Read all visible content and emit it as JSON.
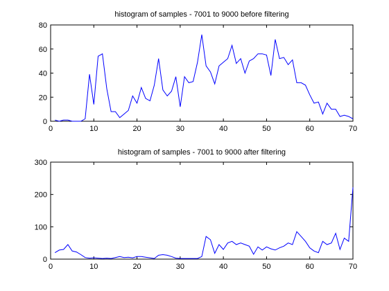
{
  "chart_data": [
    {
      "type": "line",
      "title": "histogram of samples - 7001 to 9000 before filtering",
      "xlabel": "",
      "ylabel": "",
      "xlim": [
        0,
        70
      ],
      "ylim": [
        0,
        80
      ],
      "xticks": [
        0,
        10,
        20,
        30,
        40,
        50,
        60,
        70
      ],
      "yticks": [
        0,
        20,
        40,
        60,
        80
      ],
      "grid": false,
      "color": "#0000ff",
      "series": [
        {
          "x": [
            1,
            2,
            3,
            4,
            5,
            6,
            7,
            8,
            9,
            10,
            11,
            12,
            13,
            14,
            15,
            16,
            17,
            18,
            19,
            20,
            21,
            22,
            23,
            24,
            25,
            26,
            27,
            28,
            29,
            30,
            31,
            32,
            33,
            34,
            35,
            36,
            37,
            38,
            39,
            40,
            41,
            42,
            43,
            44,
            45,
            46,
            47,
            48,
            49,
            50,
            51,
            52,
            53,
            54,
            55,
            56,
            57,
            58,
            59,
            60,
            61,
            62,
            63,
            64,
            65,
            66,
            67,
            68,
            69,
            70
          ],
          "values": [
            1,
            0,
            1,
            1,
            0,
            0,
            0,
            2,
            39,
            14,
            54,
            56,
            27,
            8,
            8,
            3,
            6,
            9,
            21,
            15,
            28,
            19,
            17,
            30,
            52,
            26,
            21,
            25,
            37,
            12,
            37,
            32,
            33,
            49,
            72,
            46,
            41,
            31,
            46,
            49,
            52,
            63,
            48,
            52,
            40,
            50,
            52,
            56,
            56,
            55,
            38,
            68,
            52,
            53,
            47,
            51,
            32,
            32,
            30,
            22,
            15,
            16,
            6,
            15,
            10,
            10,
            4,
            5,
            4,
            2
          ]
        }
      ]
    },
    {
      "type": "line",
      "title": "histogram of samples - 7001 to 9000 after filtering",
      "xlabel": "",
      "ylabel": "",
      "xlim": [
        0,
        70
      ],
      "ylim": [
        0,
        300
      ],
      "xticks": [
        0,
        10,
        20,
        30,
        40,
        50,
        60,
        70
      ],
      "yticks": [
        0,
        100,
        200,
        300
      ],
      "grid": false,
      "color": "#0000ff",
      "series": [
        {
          "x": [
            1,
            2,
            3,
            4,
            5,
            6,
            7,
            8,
            9,
            10,
            11,
            12,
            13,
            14,
            15,
            16,
            17,
            18,
            19,
            20,
            21,
            22,
            23,
            24,
            25,
            26,
            27,
            28,
            29,
            30,
            31,
            32,
            33,
            34,
            35,
            36,
            37,
            38,
            39,
            40,
            41,
            42,
            43,
            44,
            45,
            46,
            47,
            48,
            49,
            50,
            51,
            52,
            53,
            54,
            55,
            56,
            57,
            58,
            59,
            60,
            61,
            62,
            63,
            64,
            65,
            66,
            67,
            68,
            69,
            70
          ],
          "values": [
            20,
            28,
            30,
            45,
            25,
            22,
            14,
            5,
            3,
            4,
            3,
            2,
            3,
            2,
            5,
            8,
            5,
            6,
            4,
            8,
            8,
            6,
            4,
            2,
            12,
            14,
            12,
            8,
            3,
            2,
            2,
            2,
            2,
            2,
            8,
            70,
            60,
            18,
            45,
            30,
            50,
            55,
            45,
            50,
            45,
            40,
            15,
            38,
            28,
            38,
            32,
            28,
            35,
            40,
            50,
            45,
            85,
            70,
            55,
            35,
            25,
            20,
            55,
            45,
            50,
            80,
            30,
            65,
            55,
            222
          ]
        }
      ]
    }
  ]
}
